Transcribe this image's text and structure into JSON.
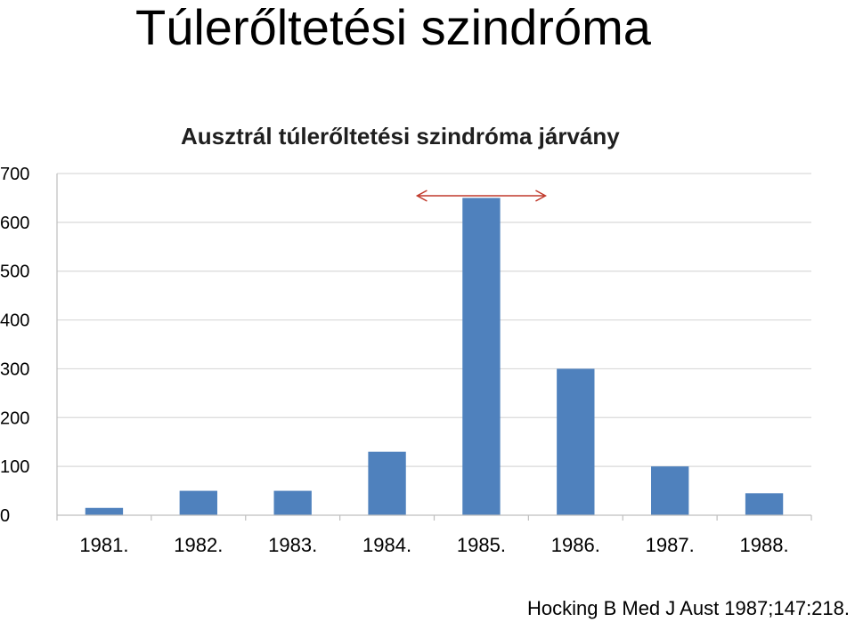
{
  "slide": {
    "title": "Túlerőltetési szindróma",
    "citation": "Hocking B Med J Aust 1987;147:218."
  },
  "chart_data": {
    "type": "bar",
    "title": "Ausztrál túlerőltetési szindróma járvány",
    "categories": [
      "1981.",
      "1982.",
      "1983.",
      "1984.",
      "1985.",
      "1986.",
      "1987.",
      "1988."
    ],
    "values": [
      15,
      50,
      50,
      130,
      650,
      300,
      100,
      45
    ],
    "xlabel": "",
    "ylabel": "",
    "ylim": [
      0,
      700
    ],
    "yticks": [
      0,
      100,
      200,
      300,
      400,
      500,
      600,
      700
    ],
    "grid": true,
    "legend": "none",
    "bar_color": "#4f81bd",
    "annotation": {
      "type": "double-arrow",
      "color": "#c0392b",
      "over_category": "1985."
    }
  }
}
